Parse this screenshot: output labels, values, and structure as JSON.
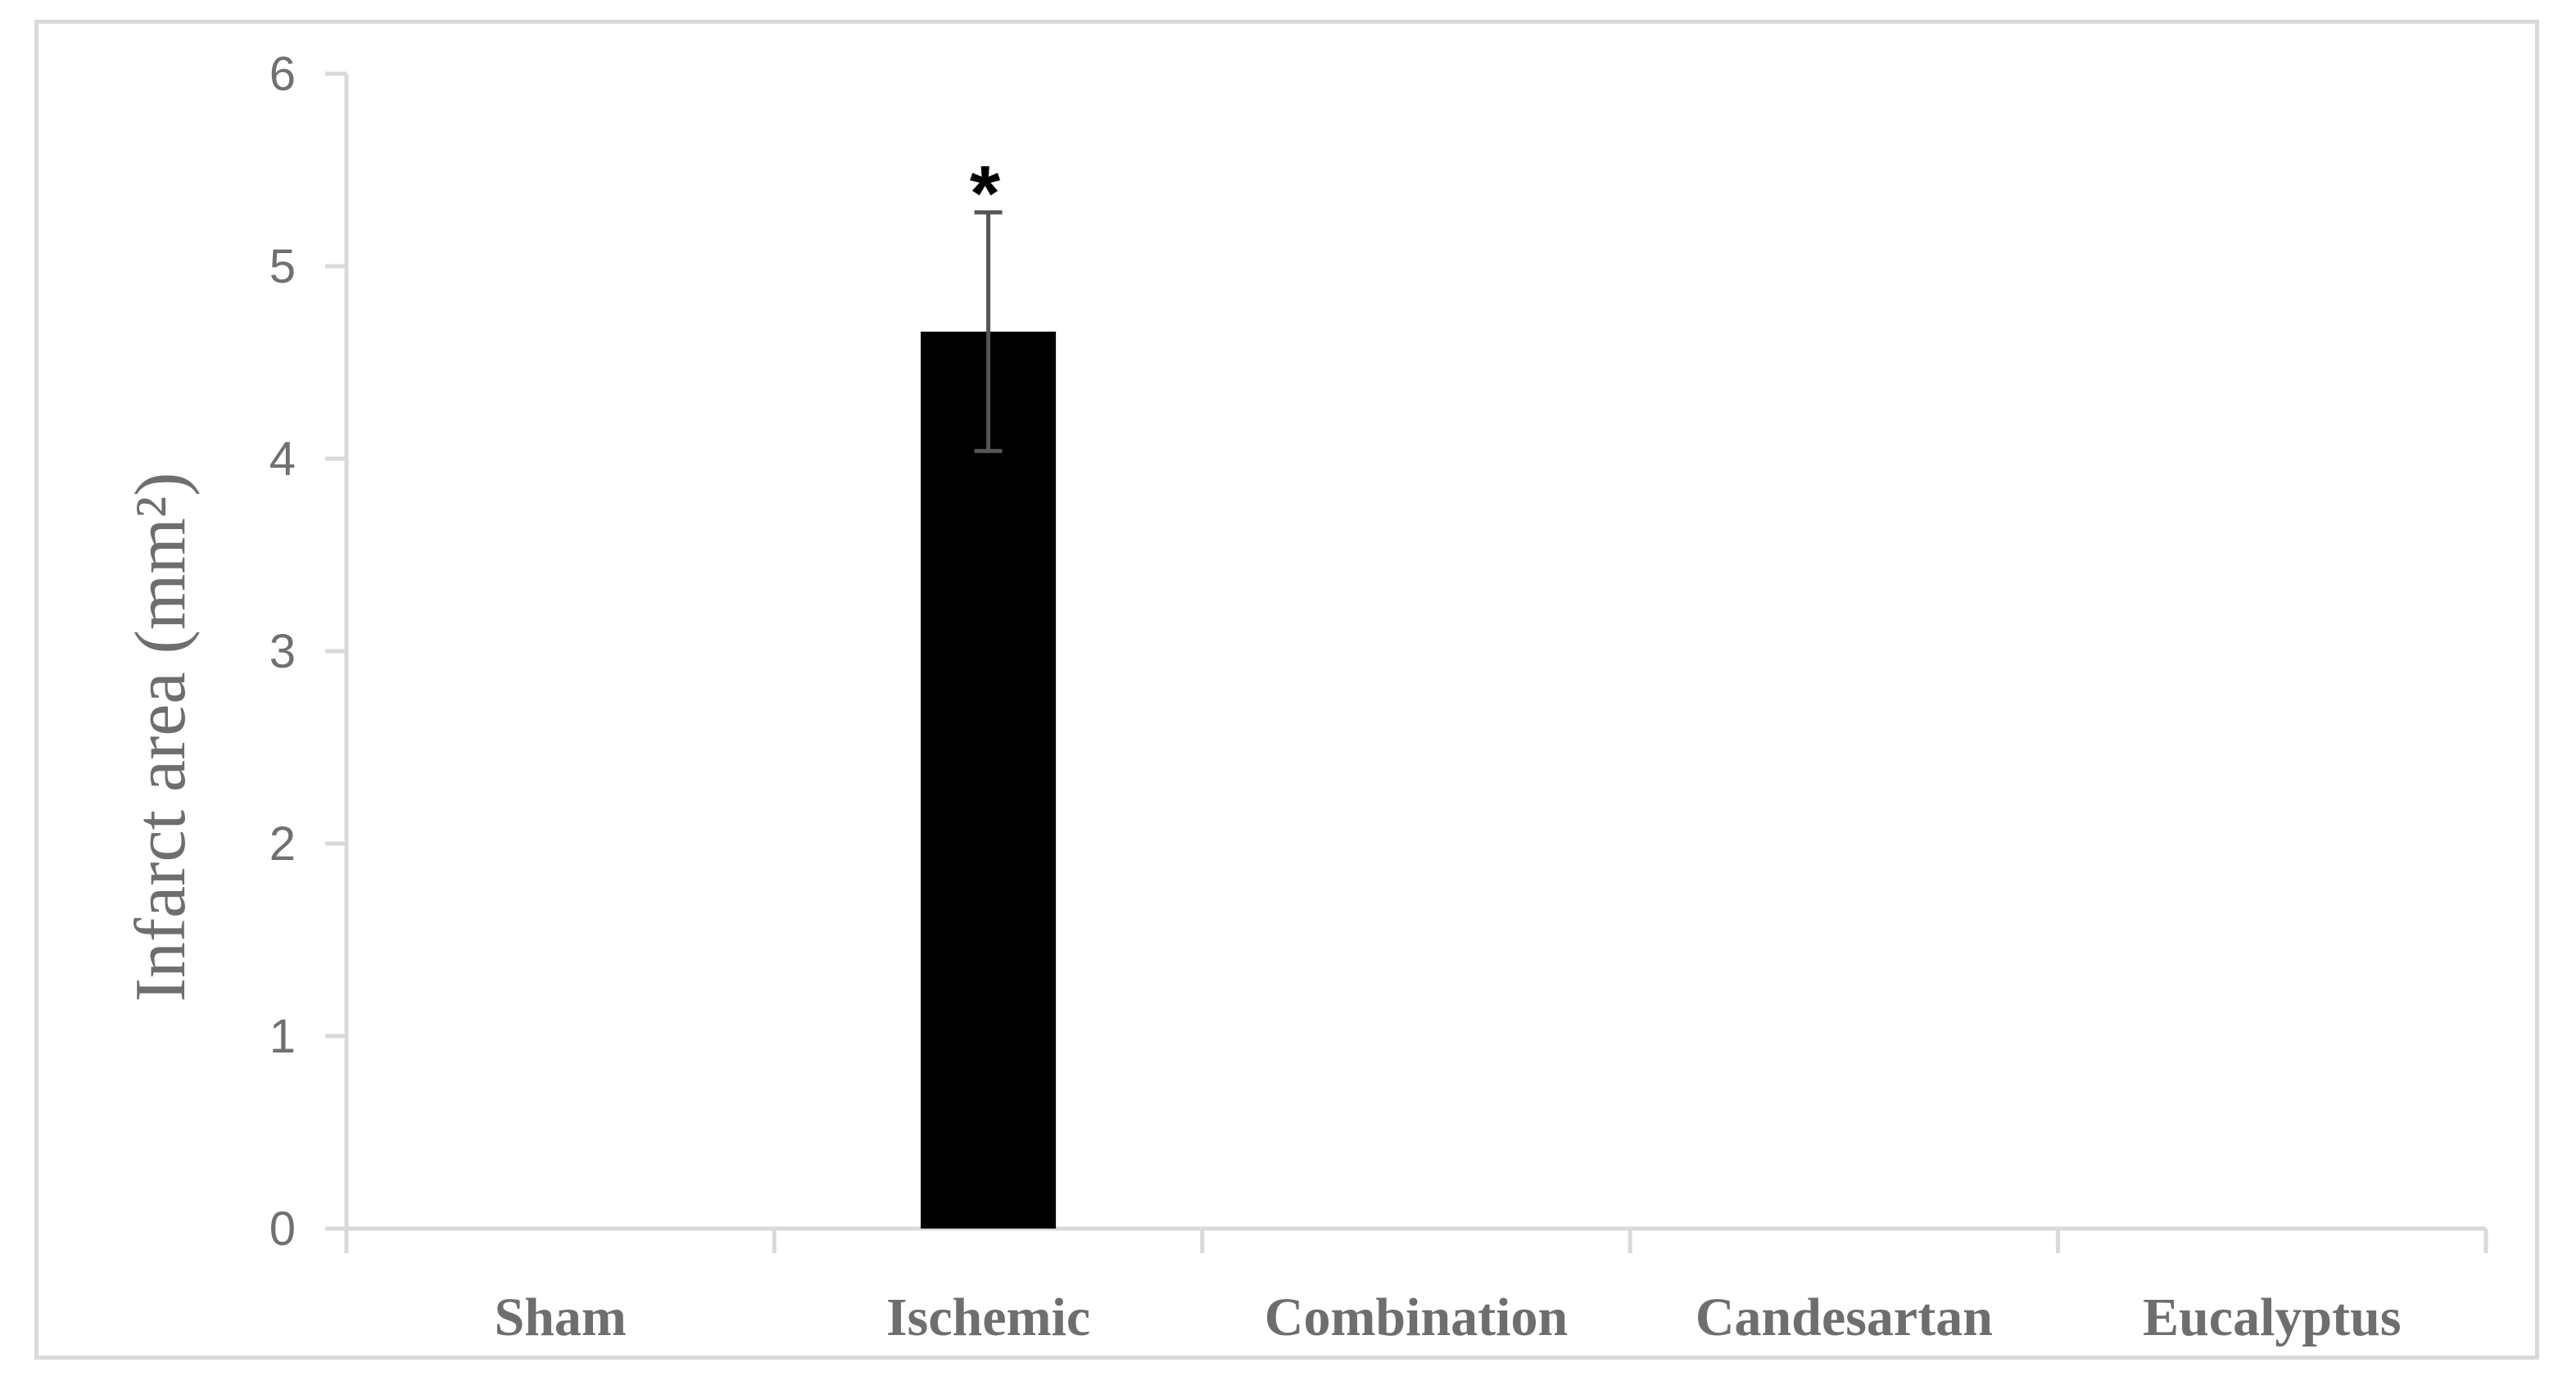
{
  "chart_data": {
    "type": "bar",
    "categories": [
      "Sham",
      "Ischemic",
      "Combination",
      "Candesartan",
      "Eucalyptus"
    ],
    "values": [
      0,
      4.66,
      0,
      0,
      0
    ],
    "error": [
      null,
      0.62,
      null,
      null,
      null
    ],
    "annotations": [
      "",
      "*",
      "",
      "",
      ""
    ],
    "ylabel": "Infarct area (mm²)",
    "ylim": [
      0,
      6
    ],
    "yticks": [
      "0",
      "1",
      "2",
      "3",
      "4",
      "5",
      "6"
    ],
    "grid": false,
    "bar_color": "#000000",
    "axis_color": "#d9d9d9"
  }
}
